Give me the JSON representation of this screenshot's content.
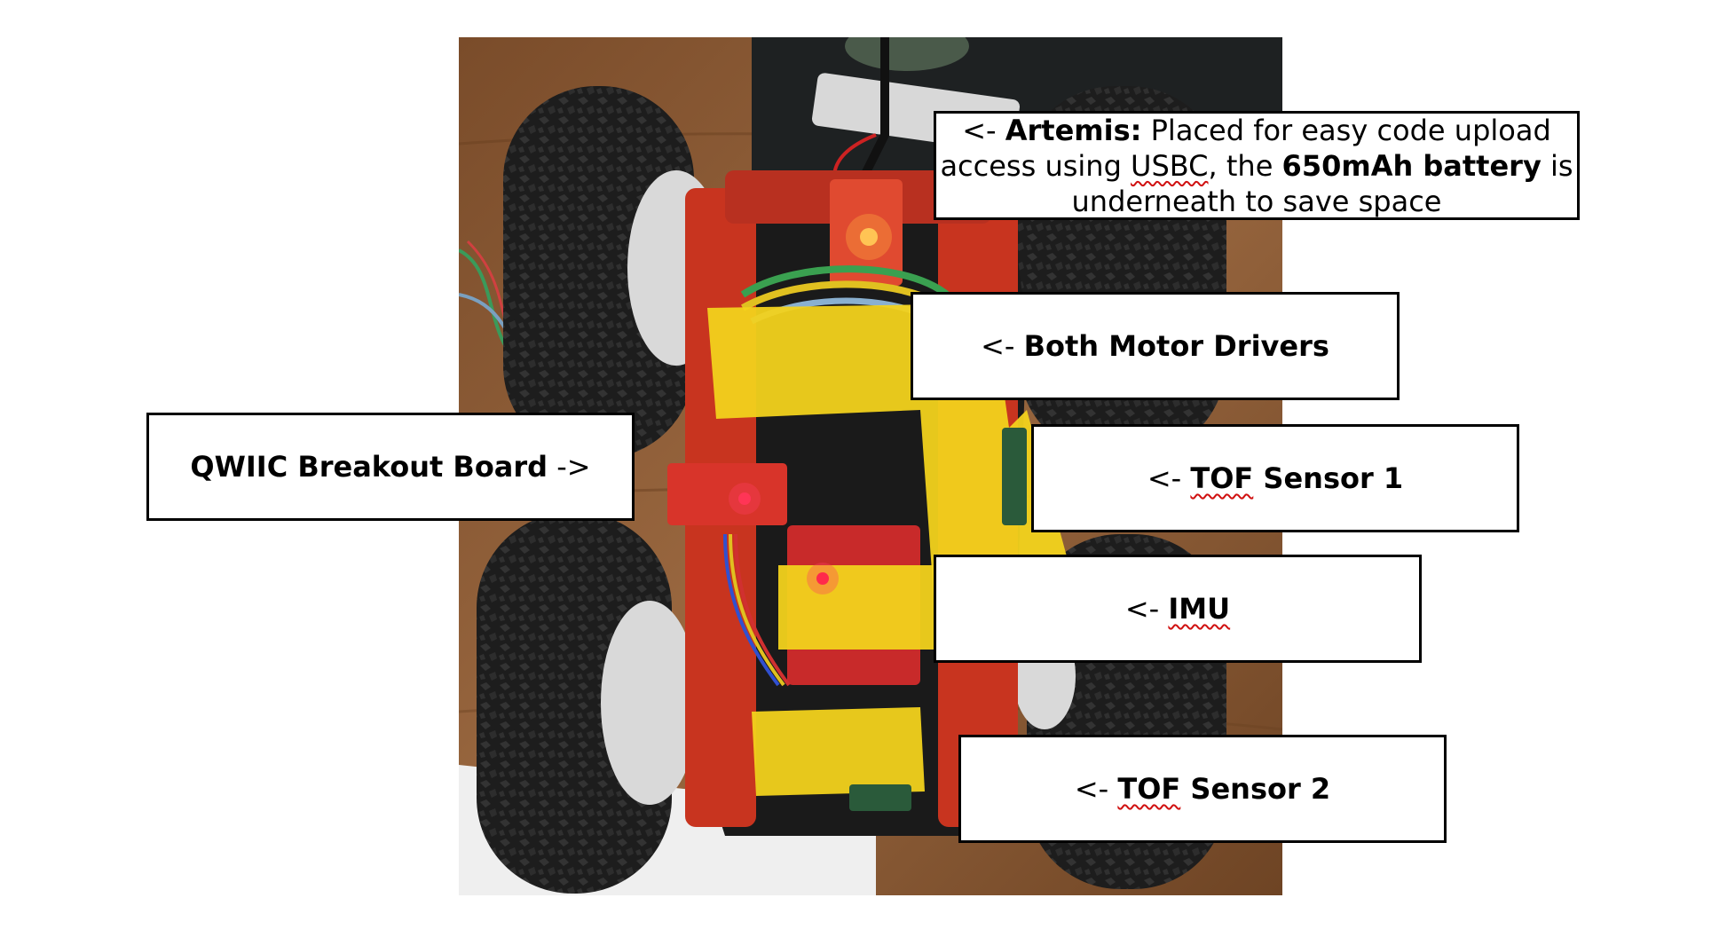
{
  "callouts": {
    "artemis": {
      "arrow": "<- ",
      "name": "Artemis:",
      "line1_rest": " Placed for easy code upload",
      "line2_pre": "access using ",
      "line2_word": "USBC",
      "line2_mid": ", the ",
      "battery": "650mAh battery",
      "line2_post": " is",
      "line3": "underneath to save space"
    },
    "motor_drivers": {
      "arrow": "<- ",
      "label": "Both Motor Drivers"
    },
    "qwiic": {
      "label": "QWIIC Breakout Board",
      "arrow": " ->"
    },
    "tof1": {
      "arrow": "<- ",
      "label_a": "TOF",
      "label_b": " Sensor 1"
    },
    "imu": {
      "arrow": "<- ",
      "label": "IMU"
    },
    "tof2": {
      "arrow": "<- ",
      "label_a": "TOF",
      "label_b": " Sensor 2"
    }
  },
  "colors": {
    "spellcheck_underline": "#d01010",
    "tape": "#f2d21c",
    "chassis": "#c8341f",
    "tire": "#1d1d1d",
    "wood": "#8a5a34"
  }
}
